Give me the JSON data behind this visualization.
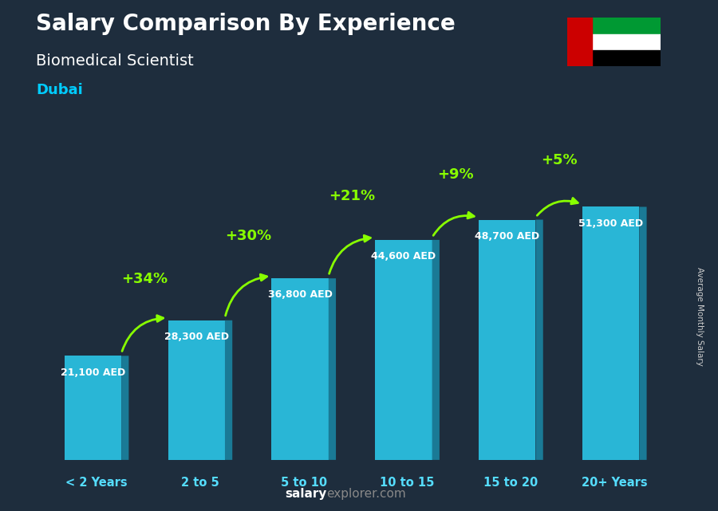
{
  "categories": [
    "< 2 Years",
    "2 to 5",
    "5 to 10",
    "10 to 15",
    "15 to 20",
    "20+ Years"
  ],
  "values": [
    21100,
    28300,
    36800,
    44600,
    48700,
    51300
  ],
  "labels": [
    "21,100 AED",
    "28,300 AED",
    "36,800 AED",
    "44,600 AED",
    "48,700 AED",
    "51,300 AED"
  ],
  "pct_changes": [
    "+34%",
    "+30%",
    "+21%",
    "+9%",
    "+5%"
  ],
  "bar_face_color": "#29b6d6",
  "bar_right_color": "#1a7a96",
  "bar_top_color": "#5cd6f0",
  "bg_color": "#1e2d3d",
  "title": "Salary Comparison By Experience",
  "subtitle": "Biomedical Scientist",
  "city": "Dubai",
  "ylabel": "Average Monthly Salary",
  "title_color": "#ffffff",
  "subtitle_color": "#ffffff",
  "city_color": "#00ccff",
  "label_color": "#ffffff",
  "pct_color": "#88ff00",
  "arrow_color": "#88ff00",
  "xticklabel_color": "#55ddff",
  "footer_salary_color": "#ffffff",
  "footer_explorer_color": "#888888",
  "ylabel_color": "#cccccc"
}
